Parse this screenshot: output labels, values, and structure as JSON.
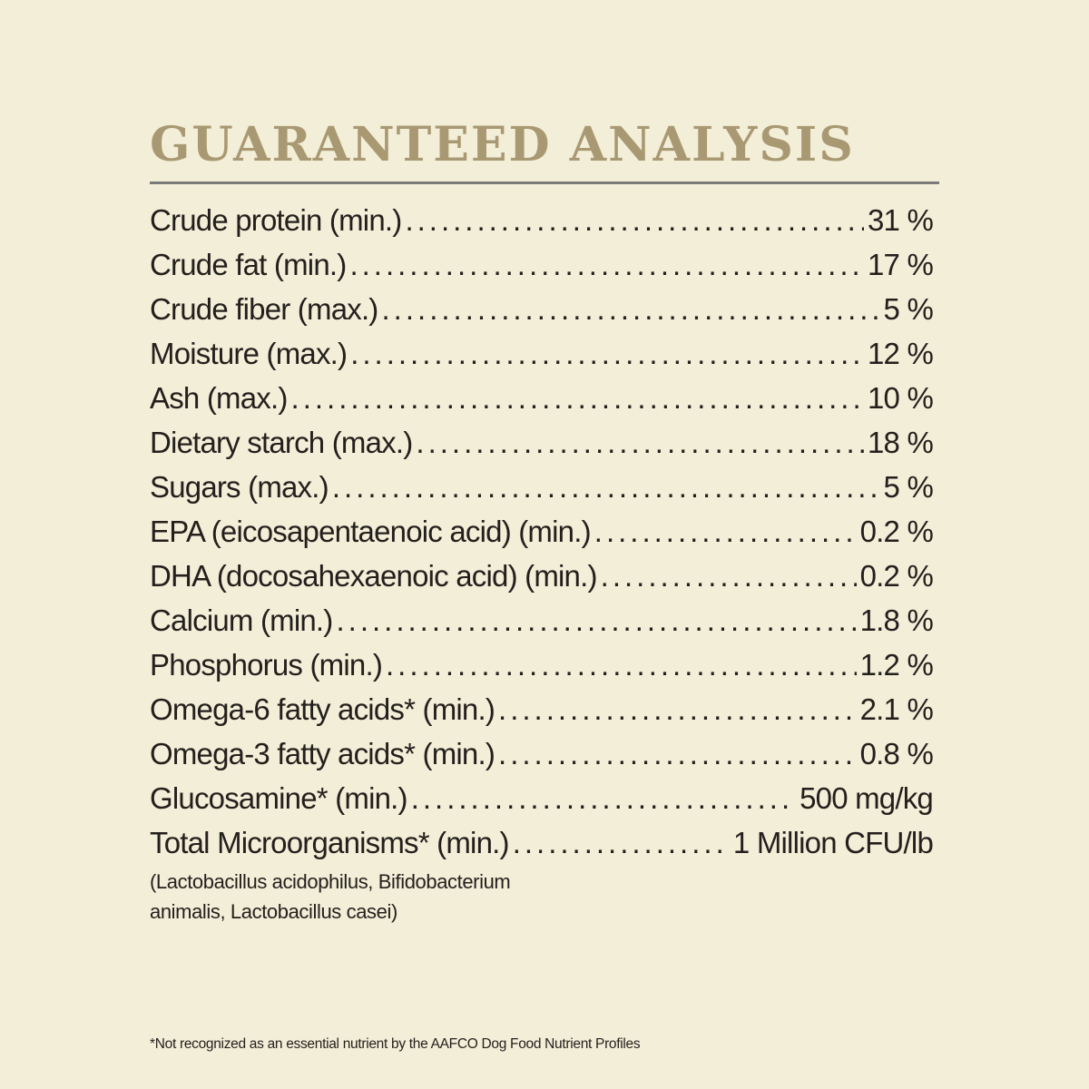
{
  "title": "GUARANTEED ANALYSIS",
  "rows": [
    {
      "label": "Crude protein (min.)",
      "value": "31 %"
    },
    {
      "label": "Crude fat (min.)",
      "value": "17 %"
    },
    {
      "label": "Crude fiber (max.)",
      "value": "5 %"
    },
    {
      "label": "Moisture (max.)",
      "value": "12 %"
    },
    {
      "label": "Ash (max.)",
      "value": "10 %"
    },
    {
      "label": "Dietary starch (max.)",
      "value": "18 %"
    },
    {
      "label": "Sugars (max.)",
      "value": "5 %"
    },
    {
      "label": "EPA (eicosapentaenoic acid) (min.)",
      "value": "0.2 %"
    },
    {
      "label": "DHA (docosahexaenoic acid) (min.)",
      "value": "0.2 %"
    },
    {
      "label": "Calcium (min.)",
      "value": "1.8 %"
    },
    {
      "label": "Phosphorus (min.)",
      "value": "1.2 %"
    },
    {
      "label": "Omega-6 fatty acids* (min.)",
      "value": "2.1 %"
    },
    {
      "label": "Omega-3 fatty acids* (min.)",
      "value": "0.8 %"
    },
    {
      "label": "Glucosamine* (min.)",
      "value": "500 mg/kg"
    },
    {
      "label": "Total Microorganisms* (min.)",
      "value": "1 Million CFU/lb"
    }
  ],
  "microorganisms_note": {
    "line1": "(Lactobacillus acidophilus, Bifidobacterium",
    "line2": "animalis, Lactobacillus casei)"
  },
  "footnote": "*Not recognized as an essential nutrient by the AAFCO Dog Food Nutrient Profiles"
}
